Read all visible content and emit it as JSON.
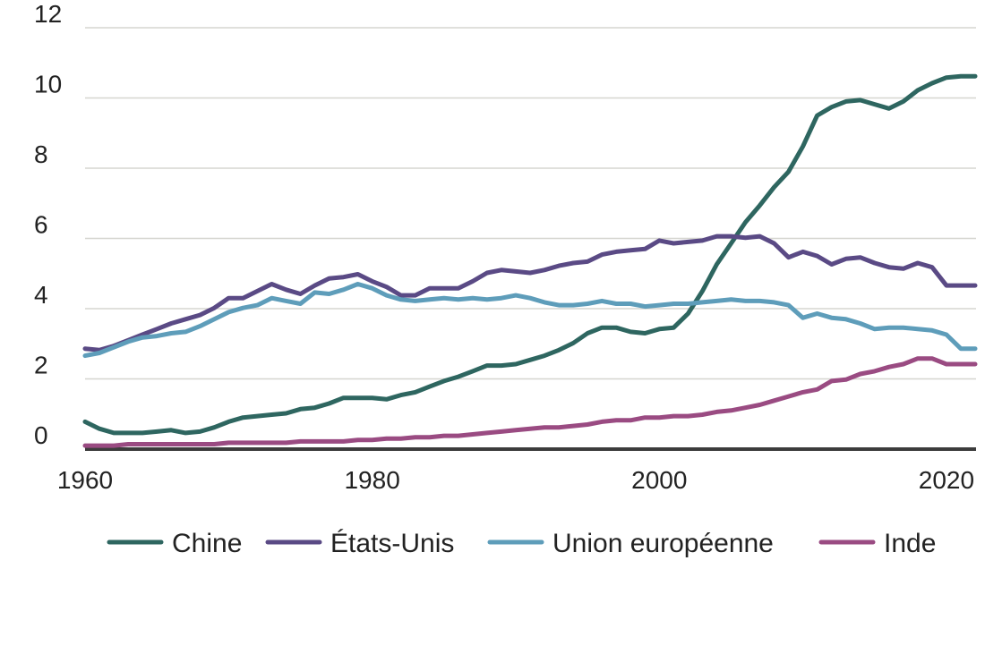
{
  "chart_data": {
    "type": "line",
    "title": "",
    "xlabel": "",
    "ylabel": "",
    "xlim": [
      1960,
      2022
    ],
    "ylim": [
      0,
      12
    ],
    "x_ticks": [
      {
        "value": 1960,
        "label": "1960"
      },
      {
        "value": 1980,
        "label": "1980"
      },
      {
        "value": 2000,
        "label": "2000"
      },
      {
        "value": 2020,
        "label": "2020"
      }
    ],
    "y_ticks": [
      {
        "value": 0,
        "label": "0"
      },
      {
        "value": 2,
        "label": "2"
      },
      {
        "value": 4,
        "label": "4"
      },
      {
        "value": 6,
        "label": "6"
      },
      {
        "value": 8,
        "label": "8"
      },
      {
        "value": 10,
        "label": "10"
      },
      {
        "value": 12,
        "label": "12"
      }
    ],
    "grid": true,
    "legend": "bottom",
    "x": [
      1960,
      1961,
      1962,
      1963,
      1964,
      1965,
      1966,
      1967,
      1968,
      1969,
      1970,
      1971,
      1972,
      1973,
      1974,
      1975,
      1976,
      1977,
      1978,
      1979,
      1980,
      1981,
      1982,
      1983,
      1984,
      1985,
      1986,
      1987,
      1988,
      1989,
      1990,
      1991,
      1992,
      1993,
      1994,
      1995,
      1996,
      1997,
      1998,
      1999,
      2000,
      2001,
      2002,
      2003,
      2004,
      2005,
      2006,
      2007,
      2008,
      2009,
      2010,
      2011,
      2012,
      2013,
      2014,
      2015,
      2016,
      2017,
      2018,
      2019,
      2020,
      2021,
      2022
    ],
    "series": [
      {
        "name": "Chine",
        "color": "#2e6660",
        "values": [
          0.78,
          0.58,
          0.46,
          0.46,
          0.46,
          0.5,
          0.54,
          0.46,
          0.5,
          0.62,
          0.78,
          0.9,
          0.94,
          0.98,
          1.02,
          1.14,
          1.18,
          1.3,
          1.46,
          1.46,
          1.46,
          1.42,
          1.54,
          1.62,
          1.78,
          1.94,
          2.06,
          2.22,
          2.38,
          2.38,
          2.42,
          2.54,
          2.66,
          2.82,
          3.02,
          3.3,
          3.46,
          3.46,
          3.34,
          3.3,
          3.42,
          3.46,
          3.86,
          4.5,
          5.26,
          5.86,
          6.46,
          6.94,
          7.46,
          7.9,
          8.62,
          9.5,
          9.74,
          9.9,
          9.94,
          9.82,
          9.7,
          9.9,
          10.22,
          10.42,
          10.58,
          10.62,
          10.62
        ]
      },
      {
        "name": "États-Unis",
        "color": "#5a4a85",
        "values": [
          2.86,
          2.82,
          2.94,
          3.1,
          3.26,
          3.42,
          3.58,
          3.7,
          3.82,
          4.02,
          4.3,
          4.3,
          4.5,
          4.7,
          4.54,
          4.42,
          4.66,
          4.86,
          4.9,
          4.98,
          4.78,
          4.62,
          4.38,
          4.38,
          4.58,
          4.58,
          4.58,
          4.78,
          5.02,
          5.1,
          5.06,
          5.02,
          5.1,
          5.22,
          5.3,
          5.34,
          5.54,
          5.62,
          5.66,
          5.7,
          5.94,
          5.86,
          5.9,
          5.94,
          6.06,
          6.06,
          6.02,
          6.06,
          5.86,
          5.46,
          5.62,
          5.5,
          5.26,
          5.42,
          5.46,
          5.3,
          5.18,
          5.14,
          5.3,
          5.18,
          4.66,
          4.66,
          4.66
        ]
      },
      {
        "name": "Union européenne",
        "color": "#5e9dba",
        "values": [
          2.66,
          2.74,
          2.9,
          3.06,
          3.18,
          3.22,
          3.3,
          3.34,
          3.5,
          3.7,
          3.9,
          4.02,
          4.1,
          4.3,
          4.22,
          4.14,
          4.46,
          4.42,
          4.54,
          4.7,
          4.58,
          4.38,
          4.26,
          4.22,
          4.26,
          4.3,
          4.26,
          4.3,
          4.26,
          4.3,
          4.38,
          4.3,
          4.18,
          4.1,
          4.1,
          4.14,
          4.22,
          4.14,
          4.14,
          4.06,
          4.1,
          4.14,
          4.14,
          4.18,
          4.22,
          4.26,
          4.22,
          4.22,
          4.18,
          4.1,
          3.74,
          3.86,
          3.74,
          3.7,
          3.58,
          3.42,
          3.46,
          3.46,
          3.42,
          3.38,
          3.26,
          2.86,
          2.86
        ]
      },
      {
        "name": "Inde",
        "color": "#9a4b82",
        "values": [
          0.1,
          0.1,
          0.1,
          0.14,
          0.14,
          0.14,
          0.14,
          0.14,
          0.14,
          0.14,
          0.18,
          0.18,
          0.18,
          0.18,
          0.18,
          0.22,
          0.22,
          0.22,
          0.22,
          0.26,
          0.26,
          0.3,
          0.3,
          0.34,
          0.34,
          0.38,
          0.38,
          0.42,
          0.46,
          0.5,
          0.54,
          0.58,
          0.62,
          0.62,
          0.66,
          0.7,
          0.78,
          0.82,
          0.82,
          0.9,
          0.9,
          0.94,
          0.94,
          0.98,
          1.06,
          1.1,
          1.18,
          1.26,
          1.38,
          1.5,
          1.62,
          1.7,
          1.94,
          1.98,
          2.14,
          2.22,
          2.34,
          2.42,
          2.58,
          2.58,
          2.42,
          2.42,
          2.42
        ]
      }
    ]
  }
}
